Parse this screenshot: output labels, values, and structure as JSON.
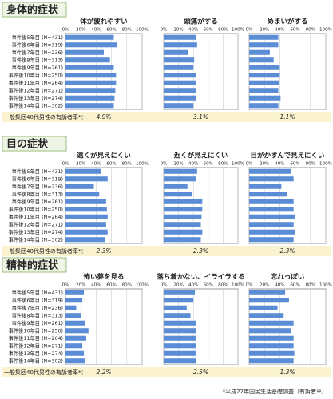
{
  "sections": [
    {
      "title": "身体的症状",
      "categories": [
        "事件後5年目 (N=431)",
        "事件後6年目 (N=319)",
        "事件後7年目 (N=236)",
        "事件後8年目 (N=313)",
        "事件後9年目 (N=261)",
        "事件後10年目 (N=250)",
        "事件後11年目 (N=264)",
        "事件後12年目 (N=271)",
        "事件後13年目 (N=274)",
        "事件後14年目 (N=302)"
      ],
      "population_label": "一般集団40代男性の有訴者率*：",
      "charts": [
        {
          "type": "bar",
          "title": "体が疲れやすい",
          "values": [
            63,
            67,
            50,
            58,
            63,
            66,
            66,
            65,
            64,
            63
          ],
          "xlim": [
            0,
            100
          ],
          "xticks": [
            {
              "value": 0,
              "label": "0%"
            },
            {
              "value": 20,
              "label": "20%"
            },
            {
              "value": 40,
              "label": "40%"
            },
            {
              "value": 60,
              "label": "60%"
            },
            {
              "value": 80,
              "label": "80%"
            },
            {
              "value": 100,
              "label": "100%"
            }
          ],
          "population_rate": "4.9%"
        },
        {
          "type": "bar",
          "title": "頭痛がする",
          "values": [
            43,
            45,
            33,
            41,
            40,
            44,
            43,
            43,
            44,
            40
          ],
          "xlim": [
            0,
            100
          ],
          "xticks": [
            {
              "value": 0,
              "label": "0%"
            },
            {
              "value": 20,
              "label": "20%"
            },
            {
              "value": 40,
              "label": "40%"
            },
            {
              "value": 60,
              "label": "60%"
            },
            {
              "value": 80,
              "label": "80%"
            },
            {
              "value": 100,
              "label": "100%"
            }
          ],
          "population_rate": "3.1%"
        },
        {
          "type": "bar",
          "title": "めまいがする",
          "values": [
            38,
            38,
            27,
            32,
            40,
            40,
            39,
            38,
            41,
            38
          ],
          "xlim": [
            0,
            100
          ],
          "xticks": [
            {
              "value": 0,
              "label": "0%"
            },
            {
              "value": 20,
              "label": "20%"
            },
            {
              "value": 40,
              "label": "40%"
            },
            {
              "value": 60,
              "label": "60%"
            },
            {
              "value": 80,
              "label": "80%"
            },
            {
              "value": 100,
              "label": "100%"
            }
          ],
          "population_rate": "1.1%"
        }
      ]
    },
    {
      "title": "目の症状",
      "categories": [
        "事件後5年目 (N=431)",
        "事件後6年目 (N=319)",
        "事件後7年目 (N=236)",
        "事件後8年目 (N=313)",
        "事件後9年目 (N=261)",
        "事件後10年目 (N=250)",
        "事件後11年目 (N=264)",
        "事件後12年目 (N=271)",
        "事件後13年目 (N=274)",
        "事件後14年目 (N=302)"
      ],
      "population_label": "一般集団40代男性の有訴者率*：",
      "charts": [
        {
          "type": "bar",
          "title": "遠くが見えにくい",
          "values": [
            46,
            55,
            37,
            44,
            53,
            54,
            55,
            53,
            55,
            52
          ],
          "xlim": [
            0,
            100
          ],
          "xticks": [
            {
              "value": 0,
              "label": "0%"
            },
            {
              "value": 20,
              "label": "20%"
            },
            {
              "value": 40,
              "label": "40%"
            },
            {
              "value": 60,
              "label": "60%"
            },
            {
              "value": 80,
              "label": "80%"
            },
            {
              "value": 100,
              "label": "100%"
            }
          ],
          "population_rate": "2.3%"
        },
        {
          "type": "bar",
          "title": "近くが見えにくい",
          "values": [
            45,
            44,
            32,
            38,
            52,
            52,
            51,
            50,
            52,
            50
          ],
          "xlim": [
            0,
            100
          ],
          "xticks": [
            {
              "value": 0,
              "label": "0%"
            },
            {
              "value": 20,
              "label": "20%"
            },
            {
              "value": 40,
              "label": "40%"
            },
            {
              "value": 60,
              "label": "60%"
            },
            {
              "value": 80,
              "label": "80%"
            },
            {
              "value": 100,
              "label": "100%"
            }
          ],
          "population_rate": "2.3%"
        },
        {
          "type": "bar",
          "title": "目がかすんで見えにくい",
          "values": [
            55,
            58,
            42,
            50,
            58,
            58,
            60,
            58,
            60,
            58
          ],
          "xlim": [
            0,
            100
          ],
          "xticks": [
            {
              "value": 0,
              "label": "0%"
            },
            {
              "value": 20,
              "label": "20%"
            },
            {
              "value": 40,
              "label": "40%"
            },
            {
              "value": 60,
              "label": "60%"
            },
            {
              "value": 80,
              "label": "80%"
            },
            {
              "value": 100,
              "label": "100%"
            }
          ],
          "population_rate": "2.3%"
        }
      ]
    },
    {
      "title": "精神的症状",
      "categories": [
        "事件後5年目 (N=431)",
        "事件後6年目 (N=319)",
        "事件後7年目 (N=236)",
        "事件後8年目 (N=313)",
        "事件後9年目 (N=261)",
        "事件後10年目 (N=250)",
        "事件後11年目 (N=264)",
        "事件後12年目 (N=271)",
        "事件後13年目 (N=274)",
        "事件後14年目 (N=302)"
      ],
      "population_label": "一般集団40代男性の有訴者率*：",
      "charts": [
        {
          "type": "bar",
          "title": "怖い夢を見る",
          "values": [
            24,
            22,
            14,
            20,
            25,
            30,
            27,
            22,
            24,
            26
          ],
          "xlim": [
            0,
            100
          ],
          "xticks": [
            {
              "value": 0,
              "label": "0%"
            },
            {
              "value": 20,
              "label": "20%"
            },
            {
              "value": 40,
              "label": "40%"
            },
            {
              "value": 60,
              "label": "60%"
            },
            {
              "value": 80,
              "label": "80%"
            },
            {
              "value": 100,
              "label": "100%"
            }
          ],
          "population_rate": "2.2%"
        },
        {
          "type": "bar",
          "title": "落ち着かない、イライラする",
          "values": [
            42,
            40,
            31,
            36,
            43,
            44,
            44,
            43,
            44,
            43
          ],
          "xlim": [
            0,
            100
          ],
          "xticks": [
            {
              "value": 0,
              "label": "0%"
            },
            {
              "value": 20,
              "label": "20%"
            },
            {
              "value": 40,
              "label": "40%"
            },
            {
              "value": 60,
              "label": "60%"
            },
            {
              "value": 80,
              "label": "80%"
            },
            {
              "value": 100,
              "label": "100%"
            }
          ],
          "population_rate": "2.5%"
        },
        {
          "type": "bar",
          "title": "忘れっぽい",
          "values": [
            47,
            52,
            37,
            45,
            58,
            55,
            58,
            58,
            59,
            58
          ],
          "xlim": [
            0,
            100
          ],
          "xticks": [
            {
              "value": 0,
              "label": "0%"
            },
            {
              "value": 20,
              "label": "20%"
            },
            {
              "value": 40,
              "label": "40%"
            },
            {
              "value": 60,
              "label": "60%"
            },
            {
              "value": 80,
              "label": "80%"
            },
            {
              "value": 100,
              "label": "100%"
            }
          ],
          "population_rate": "1.3%"
        }
      ]
    }
  ],
  "footnote": "*平成22年国民生活基礎調査（有訴者率）"
}
